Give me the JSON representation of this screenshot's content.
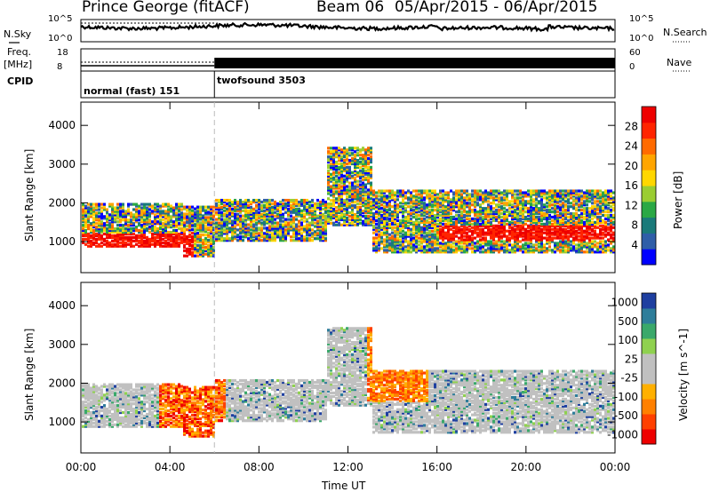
{
  "header": {
    "station": "Prince George (fitACF)",
    "beam": "Beam 06",
    "date_range": "05/Apr/2015 - 06/Apr/2015"
  },
  "left_labels": {
    "nsky": "N.Sky",
    "nsky_top": "10^5",
    "nsky_bottom": "10^0",
    "freq": "Freq.",
    "freq_unit": "[MHz]",
    "freq_top": "18",
    "freq_bottom": "8",
    "cpid": "CPID"
  },
  "right_labels": {
    "nsearch": "N.Search",
    "nsearch_top": "10^5",
    "nsearch_bottom": "10^0",
    "nave": "Nave",
    "nave_top": "60",
    "nave_bottom": "0"
  },
  "cpid_segments": [
    {
      "name": "normal (fast) 151"
    },
    {
      "name": "twofsound 3503"
    }
  ],
  "colors": {
    "power_scale": [
      "#0000ff",
      "#2f5ea8",
      "#1a7a7a",
      "#2aa845",
      "#9acd32",
      "#ffd700",
      "#ffa500",
      "#ff6a00",
      "#ff2400",
      "#ee0000"
    ],
    "velocity_scale": [
      "#1e3fa0",
      "#2e7d9a",
      "#3aa86a",
      "#8fd14f",
      "#c0c0c0",
      "#c0c0c0",
      "#ffb000",
      "#ff8000",
      "#ff4000",
      "#ee0000"
    ]
  },
  "chart_data": [
    {
      "type": "heatmap",
      "title": "Power",
      "xlabel": "Time UT",
      "ylabel": "Slant Range [km]",
      "x_ticks": [
        "00:00",
        "04:00",
        "08:00",
        "12:00",
        "16:00",
        "20:00",
        "00:00"
      ],
      "x_range_hours": [
        0,
        24
      ],
      "y_ticks": [
        1000,
        2000,
        3000,
        4000
      ],
      "ylim": [
        200,
        4600
      ],
      "colorbar": {
        "label": "Power [dB]",
        "ticks": [
          "4",
          "8",
          "12",
          "16",
          "20",
          "24",
          "28"
        ],
        "range": [
          0,
          30
        ]
      },
      "description_features": [
        {
          "t_start": 0,
          "t_end": 5,
          "range_low": 900,
          "range_high": 1900,
          "level_db": 24
        },
        {
          "t_start": 4.5,
          "t_end": 11,
          "range_low": 1000,
          "range_high": 2000,
          "level_db": 20
        },
        {
          "t_start": 13,
          "t_end": 24,
          "range_low": 800,
          "range_high": 2200,
          "level_db": 26
        }
      ]
    },
    {
      "type": "heatmap",
      "title": "Velocity",
      "xlabel": "Time UT",
      "ylabel": "Slant Range [km]",
      "x_ticks": [
        "00:00",
        "04:00",
        "08:00",
        "12:00",
        "16:00",
        "20:00",
        "00:00"
      ],
      "x_range_hours": [
        0,
        24
      ],
      "y_ticks": [
        1000,
        2000,
        3000,
        4000
      ],
      "ylim": [
        200,
        4600
      ],
      "colorbar": {
        "label": "Velocity [m s^-1]",
        "ticks": [
          "1000",
          "500",
          "100",
          "25",
          "-25",
          "-100",
          "-500",
          "-1000"
        ]
      }
    }
  ]
}
